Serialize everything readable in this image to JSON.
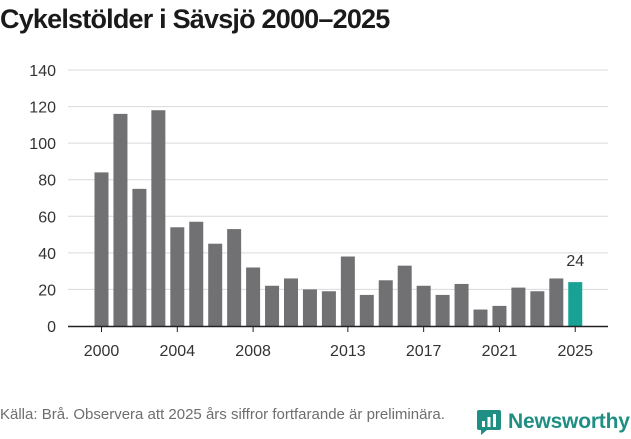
{
  "title": "Cykelstölder i Sävsjö 2000–2025",
  "source": "Källa: Brå. Observera att 2025 års siffror fortfarande är preliminära.",
  "brand": {
    "name": "Newsworthy",
    "icon": "newsworthy-logo-icon"
  },
  "colors": {
    "bar": "#717073",
    "highlight": "#17a295",
    "grid": "#d9d9d9",
    "axis": "#222222",
    "brand": "#1f8f84"
  },
  "chart_data": {
    "type": "bar",
    "title": "Cykelstölder i Sävsjö 2000–2025",
    "xlabel": "",
    "ylabel": "",
    "ylim": [
      0,
      140
    ],
    "yticks": [
      0,
      20,
      40,
      60,
      80,
      100,
      120,
      140
    ],
    "xtick_labels": [
      "2000",
      "2004",
      "2008",
      "2013",
      "2017",
      "2021",
      "2025"
    ],
    "categories": [
      "2000",
      "2001",
      "2002",
      "2003",
      "2004",
      "2005",
      "2006",
      "2007",
      "2008",
      "2009",
      "2010",
      "2011",
      "2012",
      "2013",
      "2014",
      "2015",
      "2016",
      "2017",
      "2018",
      "2019",
      "2020",
      "2021",
      "2022",
      "2023",
      "2024",
      "2025"
    ],
    "values": [
      84,
      116,
      75,
      118,
      54,
      57,
      45,
      53,
      32,
      22,
      26,
      20,
      19,
      38,
      17,
      25,
      33,
      22,
      17,
      23,
      9,
      11,
      21,
      19,
      26,
      24
    ],
    "highlight": {
      "category": "2025",
      "label": "24"
    },
    "grid": true
  }
}
